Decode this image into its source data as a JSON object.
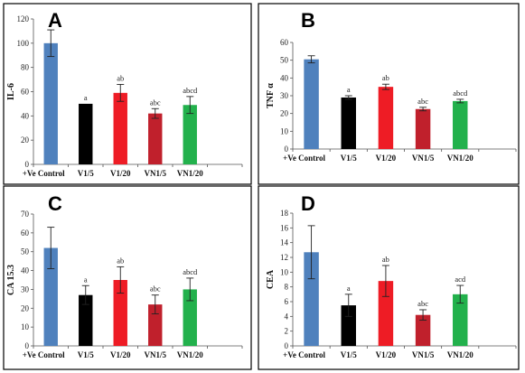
{
  "chart_data": [
    {
      "type": "bar",
      "panel_label": "A",
      "ylabel": "IL-6",
      "ylim": [
        0,
        120
      ],
      "yticks": [
        0,
        20,
        40,
        60,
        80,
        100,
        120
      ],
      "categories": [
        "+Ve Control",
        "V1/5",
        "V1/20",
        "VN1/5",
        "VN1/20"
      ],
      "values": [
        100,
        50,
        59,
        42,
        49
      ],
      "errors": [
        11,
        0,
        7,
        4,
        7
      ],
      "labels": [
        "",
        "a",
        "ab",
        "abc",
        "abcd"
      ],
      "colors": [
        "#4f81bd",
        "#000000",
        "#ee1c25",
        "#c0202c",
        "#22b14c"
      ]
    },
    {
      "type": "bar",
      "panel_label": "B",
      "ylabel": "TNF α",
      "ylim": [
        0,
        60
      ],
      "yticks": [
        0,
        10,
        20,
        30,
        40,
        50,
        60
      ],
      "categories": [
        "+Ve Control",
        "V1/5",
        "V1/20",
        "VN1/5",
        "VN1/20"
      ],
      "values": [
        50.5,
        29,
        35,
        22.5,
        27
      ],
      "errors": [
        2,
        1,
        1.5,
        1,
        1
      ],
      "labels": [
        "",
        "a",
        "ab",
        "abc",
        "abcd"
      ],
      "colors": [
        "#4f81bd",
        "#000000",
        "#ee1c25",
        "#c0202c",
        "#22b14c"
      ]
    },
    {
      "type": "bar",
      "panel_label": "C",
      "ylabel": "CA 15.3",
      "ylim": [
        0,
        70
      ],
      "yticks": [
        0,
        10,
        20,
        30,
        40,
        50,
        60,
        70
      ],
      "categories": [
        "+Ve Control",
        "V1/5",
        "V1/20",
        "VN1/5",
        "VN1/20"
      ],
      "values": [
        52,
        27,
        35,
        22,
        30
      ],
      "errors": [
        11,
        5,
        7,
        5,
        6
      ],
      "labels": [
        "",
        "a",
        "ab",
        "abc",
        "abcd"
      ],
      "colors": [
        "#4f81bd",
        "#000000",
        "#ee1c25",
        "#c0202c",
        "#22b14c"
      ]
    },
    {
      "type": "bar",
      "panel_label": "D",
      "ylabel": "CEA",
      "ylim": [
        0,
        18
      ],
      "yticks": [
        0,
        2,
        4,
        6,
        8,
        10,
        12,
        14,
        16,
        18
      ],
      "categories": [
        "+Ve Control",
        "V1/5",
        "V1/20",
        "VN1/5",
        "VN1/20"
      ],
      "values": [
        12.7,
        5.5,
        8.8,
        4.2,
        7
      ],
      "errors": [
        3.6,
        1.5,
        2.1,
        0.7,
        1.2
      ],
      "labels": [
        "",
        "a",
        "ab",
        "abc",
        "acd"
      ],
      "colors": [
        "#4f81bd",
        "#000000",
        "#ee1c25",
        "#c0202c",
        "#22b14c"
      ]
    }
  ]
}
